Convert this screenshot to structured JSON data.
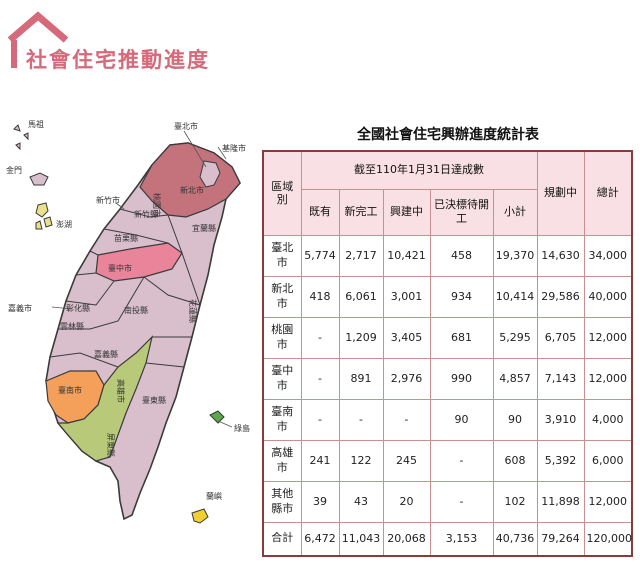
{
  "header": {
    "title": "社會住宅推動進度"
  },
  "map": {
    "labels": {
      "taipei": "臺北市",
      "keelung": "基隆市",
      "newtaipei": "新北市",
      "taoyuan": "桃園市",
      "hsinchu_city": "新竹市",
      "hsinchu_county": "新竹縣",
      "yilan": "宜蘭縣",
      "miaoli": "苗栗縣",
      "taichung": "臺中市",
      "changhua": "彰化縣",
      "nantou": "南投縣",
      "hualien": "花蓮縣",
      "chiayi_city": "嘉義市",
      "yunlin": "雲林縣",
      "chiayi_county": "嘉義縣",
      "tainan": "臺南市",
      "kaohsiung": "高雄市",
      "pingtung": "屏東縣",
      "taitung": "臺東縣",
      "matsu": "馬祖",
      "kinmen": "金門",
      "penghu": "澎湖",
      "greenisland": "綠島",
      "orchid": "蘭嶼"
    },
    "colors": {
      "base": "#d9bfcc",
      "taipei_region": "#c4727c",
      "taichung": "#e9849a",
      "tainan": "#f5a05a",
      "kaohsiung": "#b9c97a",
      "outline": "#3a3a3a"
    }
  },
  "table": {
    "title": "全國社會住宅興辦進度統計表",
    "headers": {
      "area": "區域別",
      "as_of": "截至110年1月31日達成數",
      "existing": "既有",
      "new_completed": "新完工",
      "under_construction": "興建中",
      "awaiting": "已決標待開工",
      "subtotal": "小計",
      "planning": "規劃中",
      "total": "總計"
    },
    "rows": [
      {
        "area": "臺北市",
        "existing": "5,774",
        "new_completed": "2,717",
        "under_construction": "10,421",
        "awaiting": "458",
        "subtotal": "19,370",
        "planning": "14,630",
        "total": "34,000"
      },
      {
        "area": "新北市",
        "existing": "418",
        "new_completed": "6,061",
        "under_construction": "3,001",
        "awaiting": "934",
        "subtotal": "10,414",
        "planning": "29,586",
        "total": "40,000"
      },
      {
        "area": "桃園市",
        "existing": "-",
        "new_completed": "1,209",
        "under_construction": "3,405",
        "awaiting": "681",
        "subtotal": "5,295",
        "planning": "6,705",
        "total": "12,000"
      },
      {
        "area": "臺中市",
        "existing": "-",
        "new_completed": "891",
        "under_construction": "2,976",
        "awaiting": "990",
        "subtotal": "4,857",
        "planning": "7,143",
        "total": "12,000"
      },
      {
        "area": "臺南市",
        "existing": "-",
        "new_completed": "-",
        "under_construction": "-",
        "awaiting": "90",
        "subtotal": "90",
        "planning": "3,910",
        "total": "4,000"
      },
      {
        "area": "高雄市",
        "existing": "241",
        "new_completed": "122",
        "under_construction": "245",
        "awaiting": "-",
        "subtotal": "608",
        "planning": "5,392",
        "total": "6,000"
      },
      {
        "area": "其他縣市",
        "existing": "39",
        "new_completed": "43",
        "under_construction": "20",
        "awaiting": "-",
        "subtotal": "102",
        "planning": "11,898",
        "total": "12,000"
      }
    ],
    "total_row": {
      "area": "合計",
      "existing": "6,472",
      "new_completed": "11,043",
      "under_construction": "20,068",
      "awaiting": "3,153",
      "subtotal": "40,736",
      "planning": "79,264",
      "total": "120,000"
    }
  }
}
